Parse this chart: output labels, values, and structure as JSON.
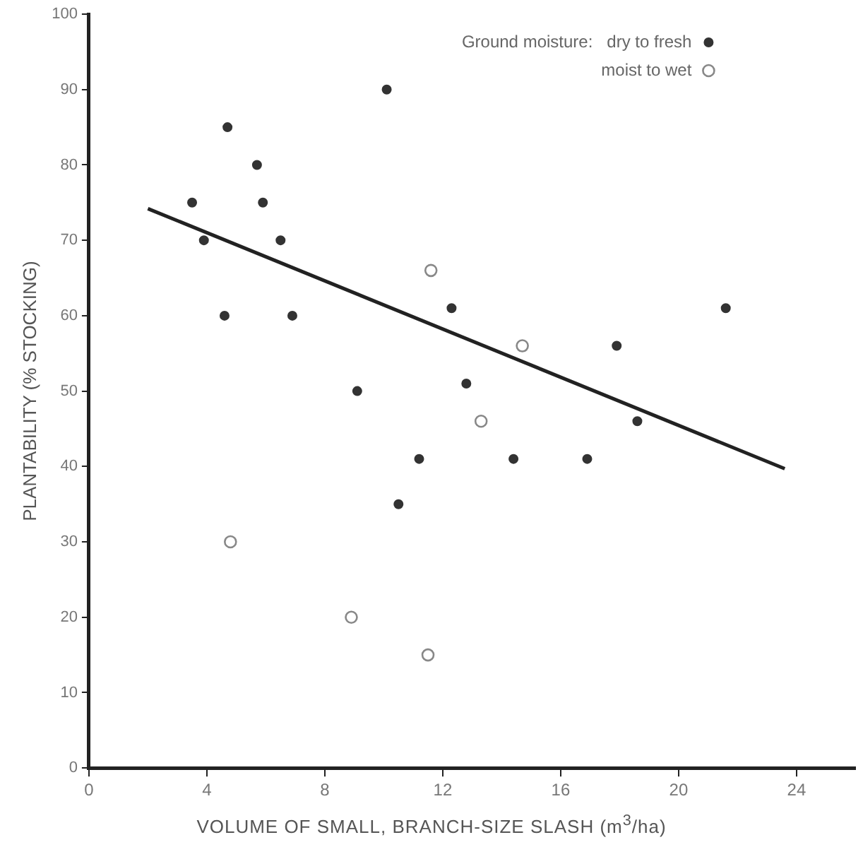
{
  "chart_data": {
    "type": "scatter",
    "xlabel": "VOLUME OF SMALL, BRANCH-SIZE SLASH (m$^{3}$/ha)",
    "ylabel": "PLANTABILITY (% STOCKING)",
    "legend_title": "Ground moisture:",
    "xlim": [
      0,
      26
    ],
    "xticks": [
      0,
      4,
      8,
      12,
      16,
      20,
      24
    ],
    "ylim": [
      0,
      100
    ],
    "yticks": [
      0,
      10,
      20,
      30,
      40,
      50,
      60,
      70,
      80,
      90,
      100
    ],
    "grid": false,
    "legend": "top right",
    "marker": "circle",
    "series": [
      {
        "name": "dry to fresh",
        "color": "#333333",
        "x": [
          3.5,
          3.9,
          4.7,
          4.6,
          5.7,
          5.9,
          6.5,
          6.9,
          9.1,
          10.1,
          12.3,
          12.8,
          17.9,
          21.6,
          10.5,
          11.2,
          14.4,
          16.9,
          18.6
        ],
        "values": [
          75,
          70,
          85,
          60,
          80,
          75,
          70,
          60,
          50,
          90,
          61,
          51,
          56,
          61,
          35,
          41,
          41,
          41,
          46
        ]
      },
      {
        "name": "moist to wet",
        "color": "#888888",
        "x": [
          11.6,
          14.7,
          13.3,
          4.8,
          8.9,
          11.5
        ],
        "values": [
          66,
          56,
          46,
          30,
          20,
          15
        ]
      },
      {
        "type": "line",
        "marker": "none",
        "color": "#222222",
        "x": [
          2,
          23.6
        ],
        "values": [
          74.2,
          39.7
        ]
      }
    ]
  }
}
